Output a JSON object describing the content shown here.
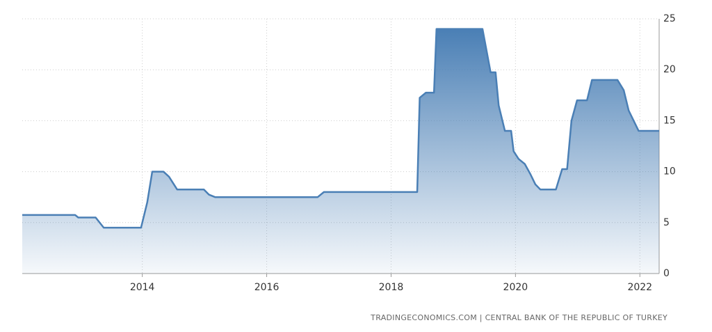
{
  "chart_data": {
    "type": "area",
    "x": [
      2012.07,
      2012.92,
      2012.97,
      2013.25,
      2013.38,
      2013.98,
      2014.08,
      2014.16,
      2014.34,
      2014.43,
      2014.56,
      2014.99,
      2015.07,
      2015.17,
      2016.82,
      2016.92,
      2018.42,
      2018.46,
      2018.56,
      2018.69,
      2018.73,
      2019.47,
      2019.6,
      2019.68,
      2019.73,
      2019.83,
      2019.93,
      2019.97,
      2020.05,
      2020.15,
      2020.24,
      2020.32,
      2020.4,
      2020.65,
      2020.75,
      2020.83,
      2020.9,
      2020.99,
      2021.15,
      2021.23,
      2021.64,
      2021.74,
      2021.82,
      2021.98,
      2022.31
    ],
    "values": [
      5.75,
      5.75,
      5.5,
      5.5,
      4.5,
      4.5,
      7,
      10,
      10,
      9.5,
      8.25,
      8.25,
      7.75,
      7.5,
      7.5,
      8,
      8,
      17.25,
      17.75,
      17.75,
      24,
      24,
      19.75,
      19.75,
      16.5,
      14,
      14,
      12,
      11.25,
      10.75,
      9.75,
      8.75,
      8.25,
      8.25,
      10.25,
      10.25,
      15,
      17,
      17,
      19,
      19,
      18,
      16,
      14,
      14
    ],
    "color": "#4a7fb5",
    "xlim": [
      2012.07,
      2022.31
    ],
    "xticks": [
      2014,
      2016,
      2018,
      2020,
      2022
    ],
    "ylim": [
      0,
      25
    ],
    "yticks": [
      0,
      5,
      10,
      15,
      20,
      25
    ],
    "grid": true,
    "source": "TRADINGECONOMICS.COM  |  CENTRAL BANK OF THE REPUBLIC OF TURKEY"
  }
}
